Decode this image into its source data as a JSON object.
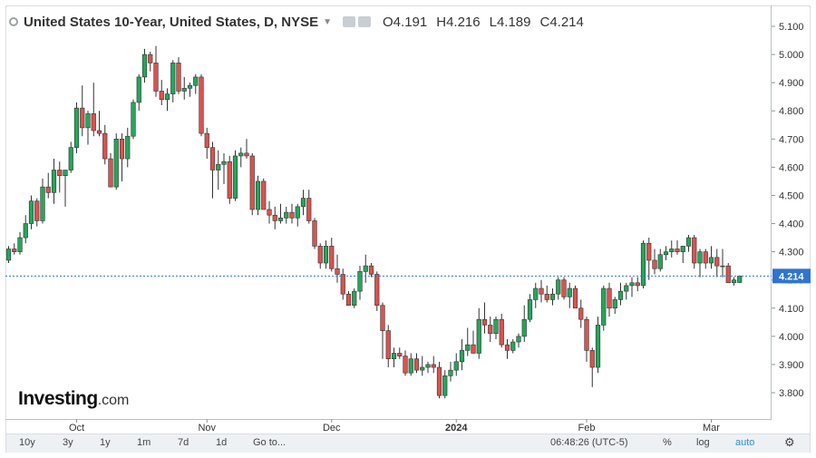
{
  "header": {
    "title": "United States 10-Year, United States, D, NYSE",
    "open": "O4.191",
    "high": "H4.216",
    "low": "L4.189",
    "close": "C4.214"
  },
  "price_tag": "4.214",
  "logo": {
    "name": "Investing",
    "suffix": ".com"
  },
  "toolbar": {
    "ranges": [
      "10y",
      "3y",
      "1y",
      "1m",
      "7d",
      "1d"
    ],
    "goto": "Go to...",
    "time": "06:48:26 (UTC-5)",
    "percent": "%",
    "log": "log",
    "auto": "auto"
  },
  "colors": {
    "up": "#26a65b",
    "down": "#d9534f",
    "current_line": "#2f74d0"
  },
  "icons": [
    "eye-icon",
    "settings-icon",
    "gear-icon"
  ],
  "chart_data": {
    "type": "candlestick",
    "title": "United States 10-Year, United States, D, NYSE",
    "ylim": [
      3.73,
      5.15
    ],
    "yticks": [
      3.8,
      3.9,
      4.0,
      4.1,
      4.2,
      4.3,
      4.4,
      4.5,
      4.6,
      4.7,
      4.8,
      4.9,
      5.0,
      5.1
    ],
    "ytick_labels": [
      "3.800",
      "3.900",
      "4.000",
      "4.100",
      "4.200",
      "4.300",
      "4.400",
      "4.500",
      "4.600",
      "4.700",
      "4.800",
      "4.900",
      "5.000",
      "5.100"
    ],
    "xtick_labels": [
      {
        "label": "Oct",
        "index": 12
      },
      {
        "label": "Nov",
        "index": 35
      },
      {
        "label": "Dec",
        "index": 57
      },
      {
        "label": "2024",
        "index": 79
      },
      {
        "label": "Feb",
        "index": 102
      },
      {
        "label": "Mar",
        "index": 124
      }
    ],
    "current_value": 4.214,
    "candles": [
      [
        4.27,
        4.32,
        4.26,
        4.31
      ],
      [
        4.31,
        4.33,
        4.29,
        4.3
      ],
      [
        4.3,
        4.37,
        4.29,
        4.35
      ],
      [
        4.35,
        4.43,
        4.33,
        4.4
      ],
      [
        4.4,
        4.5,
        4.38,
        4.48
      ],
      [
        4.48,
        4.49,
        4.39,
        4.41
      ],
      [
        4.41,
        4.56,
        4.4,
        4.53
      ],
      [
        4.53,
        4.58,
        4.49,
        4.51
      ],
      [
        4.51,
        4.63,
        4.47,
        4.59
      ],
      [
        4.59,
        4.62,
        4.51,
        4.57
      ],
      [
        4.57,
        4.58,
        4.46,
        4.59
      ],
      [
        4.59,
        4.69,
        4.58,
        4.67
      ],
      [
        4.67,
        4.83,
        4.65,
        4.81
      ],
      [
        4.81,
        4.89,
        4.71,
        4.74
      ],
      [
        4.74,
        4.8,
        4.68,
        4.79
      ],
      [
        4.79,
        4.9,
        4.71,
        4.73
      ],
      [
        4.73,
        4.8,
        4.71,
        4.72
      ],
      [
        4.72,
        4.75,
        4.61,
        4.63
      ],
      [
        4.63,
        4.65,
        4.53,
        4.53
      ],
      [
        4.53,
        4.72,
        4.52,
        4.7
      ],
      [
        4.7,
        4.72,
        4.55,
        4.63
      ],
      [
        4.63,
        4.74,
        4.6,
        4.71
      ],
      [
        4.71,
        4.84,
        4.7,
        4.83
      ],
      [
        4.83,
        4.93,
        4.8,
        4.92
      ],
      [
        4.92,
        5.02,
        4.9,
        5.0
      ],
      [
        5.0,
        5.01,
        4.94,
        4.97
      ],
      [
        4.97,
        5.03,
        4.85,
        4.87
      ],
      [
        4.87,
        4.91,
        4.82,
        4.84
      ],
      [
        4.84,
        4.88,
        4.8,
        4.86
      ],
      [
        4.86,
        4.98,
        4.83,
        4.97
      ],
      [
        4.97,
        4.99,
        4.86,
        4.87
      ],
      [
        4.87,
        4.92,
        4.84,
        4.88
      ],
      [
        4.88,
        4.9,
        4.85,
        4.89
      ],
      [
        4.89,
        4.93,
        4.86,
        4.92
      ],
      [
        4.92,
        4.93,
        4.71,
        4.72
      ],
      [
        4.72,
        4.74,
        4.63,
        4.67
      ],
      [
        4.67,
        4.69,
        4.49,
        4.59
      ],
      [
        4.59,
        4.66,
        4.52,
        4.61
      ],
      [
        4.61,
        4.65,
        4.54,
        4.62
      ],
      [
        4.62,
        4.64,
        4.47,
        4.49
      ],
      [
        4.49,
        4.66,
        4.48,
        4.64
      ],
      [
        4.64,
        4.67,
        4.6,
        4.65
      ],
      [
        4.65,
        4.7,
        4.63,
        4.64
      ],
      [
        4.64,
        4.65,
        4.43,
        4.45
      ],
      [
        4.45,
        4.57,
        4.43,
        4.55
      ],
      [
        4.55,
        4.56,
        4.45,
        4.45
      ],
      [
        4.45,
        4.48,
        4.4,
        4.43
      ],
      [
        4.43,
        4.46,
        4.38,
        4.41
      ],
      [
        4.41,
        4.47,
        4.4,
        4.42
      ],
      [
        4.42,
        4.46,
        4.4,
        4.44
      ],
      [
        4.44,
        4.47,
        4.4,
        4.42
      ],
      [
        4.42,
        4.47,
        4.39,
        4.46
      ],
      [
        4.46,
        4.52,
        4.43,
        4.49
      ],
      [
        4.49,
        4.52,
        4.4,
        4.41
      ],
      [
        4.41,
        4.42,
        4.31,
        4.32
      ],
      [
        4.32,
        4.33,
        4.24,
        4.26
      ],
      [
        4.26,
        4.34,
        4.24,
        4.32
      ],
      [
        4.32,
        4.35,
        4.23,
        4.24
      ],
      [
        4.24,
        4.29,
        4.19,
        4.22
      ],
      [
        4.22,
        4.24,
        4.13,
        4.15
      ],
      [
        4.15,
        4.16,
        4.11,
        4.11
      ],
      [
        4.11,
        4.17,
        4.1,
        4.16
      ],
      [
        4.16,
        4.25,
        4.13,
        4.23
      ],
      [
        4.23,
        4.29,
        4.19,
        4.25
      ],
      [
        4.25,
        4.26,
        4.21,
        4.22
      ],
      [
        4.22,
        4.23,
        4.09,
        4.11
      ],
      [
        4.11,
        4.12,
        3.92,
        4.02
      ],
      [
        4.02,
        4.04,
        3.89,
        3.92
      ],
      [
        3.92,
        3.96,
        3.89,
        3.94
      ],
      [
        3.94,
        3.96,
        3.92,
        3.93
      ],
      [
        3.93,
        3.95,
        3.86,
        3.87
      ],
      [
        3.87,
        3.94,
        3.86,
        3.92
      ],
      [
        3.92,
        3.94,
        3.87,
        3.88
      ],
      [
        3.88,
        3.93,
        3.86,
        3.89
      ],
      [
        3.89,
        3.91,
        3.87,
        3.9
      ],
      [
        3.9,
        3.93,
        3.87,
        3.89
      ],
      [
        3.89,
        3.91,
        3.78,
        3.79
      ],
      [
        3.79,
        3.88,
        3.78,
        3.86
      ],
      [
        3.86,
        3.91,
        3.84,
        3.88
      ],
      [
        3.88,
        3.94,
        3.86,
        3.91
      ],
      [
        3.91,
        3.99,
        3.88,
        3.95
      ],
      [
        3.95,
        4.03,
        3.93,
        3.97
      ],
      [
        3.97,
        4.02,
        3.94,
        3.94
      ],
      [
        3.94,
        4.1,
        3.92,
        4.06
      ],
      [
        4.06,
        4.12,
        4.01,
        4.04
      ],
      [
        4.04,
        4.07,
        3.98,
        4.01
      ],
      [
        4.01,
        4.07,
        3.99,
        4.06
      ],
      [
        4.06,
        4.08,
        3.96,
        3.97
      ],
      [
        3.97,
        3.99,
        3.92,
        3.95
      ],
      [
        3.95,
        3.99,
        3.94,
        3.98
      ],
      [
        3.98,
        4.01,
        3.96,
        4.0
      ],
      [
        4.0,
        4.11,
        3.98,
        4.06
      ],
      [
        4.06,
        4.15,
        4.05,
        4.13
      ],
      [
        4.13,
        4.19,
        4.1,
        4.17
      ],
      [
        4.17,
        4.2,
        4.12,
        4.15
      ],
      [
        4.15,
        4.18,
        4.12,
        4.13
      ],
      [
        4.13,
        4.17,
        4.11,
        4.15
      ],
      [
        4.15,
        4.21,
        4.13,
        4.2
      ],
      [
        4.2,
        4.21,
        4.13,
        4.14
      ],
      [
        4.14,
        4.19,
        4.1,
        4.17
      ],
      [
        4.17,
        4.18,
        4.1,
        4.1
      ],
      [
        4.1,
        4.13,
        4.03,
        4.06
      ],
      [
        4.06,
        4.07,
        3.91,
        3.95
      ],
      [
        3.95,
        3.96,
        3.82,
        3.89
      ],
      [
        3.89,
        4.07,
        3.87,
        4.04
      ],
      [
        4.04,
        4.18,
        4.02,
        4.17
      ],
      [
        4.17,
        4.19,
        4.07,
        4.1
      ],
      [
        4.1,
        4.14,
        4.08,
        4.13
      ],
      [
        4.13,
        4.19,
        4.11,
        4.16
      ],
      [
        4.16,
        4.19,
        4.13,
        4.18
      ],
      [
        4.18,
        4.21,
        4.14,
        4.19
      ],
      [
        4.19,
        4.21,
        4.16,
        4.18
      ],
      [
        4.18,
        4.34,
        4.17,
        4.33
      ],
      [
        4.33,
        4.35,
        4.2,
        4.27
      ],
      [
        4.27,
        4.31,
        4.22,
        4.24
      ],
      [
        4.24,
        4.31,
        4.23,
        4.29
      ],
      [
        4.29,
        4.32,
        4.27,
        4.3
      ],
      [
        4.3,
        4.34,
        4.28,
        4.31
      ],
      [
        4.31,
        4.34,
        4.29,
        4.3
      ],
      [
        4.3,
        4.32,
        4.26,
        4.32
      ],
      [
        4.32,
        4.36,
        4.3,
        4.35
      ],
      [
        4.35,
        4.36,
        4.24,
        4.26
      ],
      [
        4.26,
        4.31,
        4.21,
        4.3
      ],
      [
        4.3,
        4.31,
        4.24,
        4.26
      ],
      [
        4.26,
        4.32,
        4.24,
        4.28
      ],
      [
        4.28,
        4.31,
        4.21,
        4.25
      ],
      [
        4.25,
        4.31,
        4.21,
        4.25
      ],
      [
        4.25,
        4.26,
        4.19,
        4.19
      ],
      [
        4.19,
        4.21,
        4.18,
        4.2
      ],
      [
        4.191,
        4.216,
        4.189,
        4.214
      ]
    ]
  }
}
